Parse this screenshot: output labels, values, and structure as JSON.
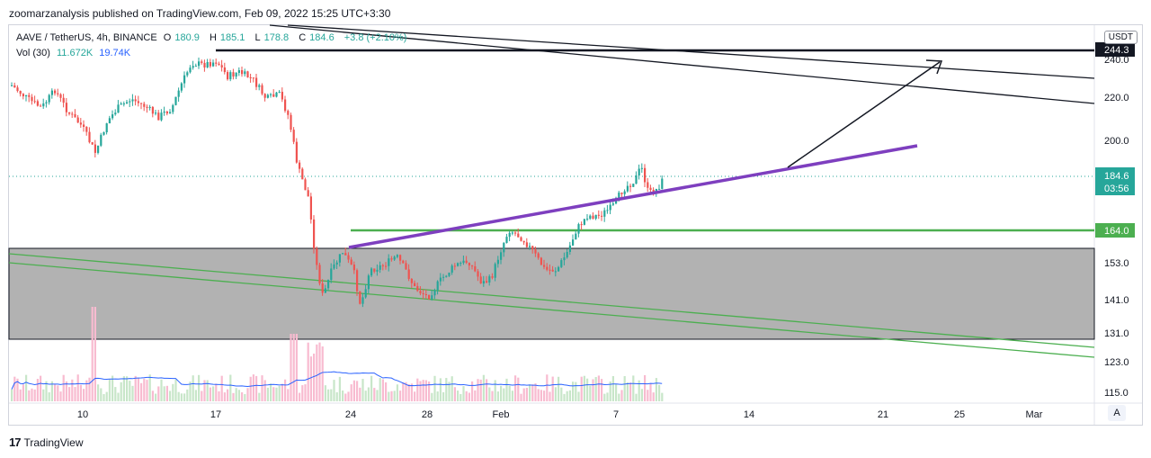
{
  "header": {
    "published_line": "zoomarzanalysis published on TradingView.com, Feb 09, 2022 15:25 UTC+3:30"
  },
  "legend": {
    "symbol": "AAVE / TetherUS, 4h, BINANCE",
    "open_label": "O",
    "open": "180.9",
    "high_label": "H",
    "high": "185.1",
    "low_label": "L",
    "low": "178.8",
    "close_label": "C",
    "close": "184.6",
    "change": "+3.8 (+2.10%)",
    "vol_label": "Vol (30)",
    "vol_value": "11.672K",
    "vol_ma": "19.74K"
  },
  "currency": "USDT",
  "footer": {
    "logo": "17",
    "brand": "TradingView"
  },
  "auto_button": "A",
  "colors": {
    "up": "#26a69a",
    "down": "#ef5350",
    "purple": "#7e3fbf",
    "green": "#4caf50",
    "grey_zone": "#b2b2b2",
    "price_badge": "#26a69a",
    "vol_up": "#c8e6c9",
    "vol_down": "#f8bbd0",
    "vol_ma": "#2962ff"
  },
  "chart_data": {
    "type": "candlestick",
    "price_axis": {
      "ticks": [
        "115.0",
        "123.0",
        "131.0",
        "141.0",
        "153.0",
        "164.0",
        "184.6",
        "200.0",
        "220.0",
        "240.0"
      ],
      "last_price": "184.6",
      "countdown": "03:56",
      "level_badge": "164.0",
      "top_level_badge": "244.3"
    },
    "time_axis": {
      "ticks": [
        "10",
        "17",
        "24",
        "28",
        "Feb",
        "7",
        "14",
        "21",
        "25",
        "Mar"
      ]
    },
    "annotations": {
      "horizontal_resistance": 244.3,
      "horizontal_support": 164.0,
      "zone_top": 157.0,
      "zone_bottom": 130.0
    }
  }
}
